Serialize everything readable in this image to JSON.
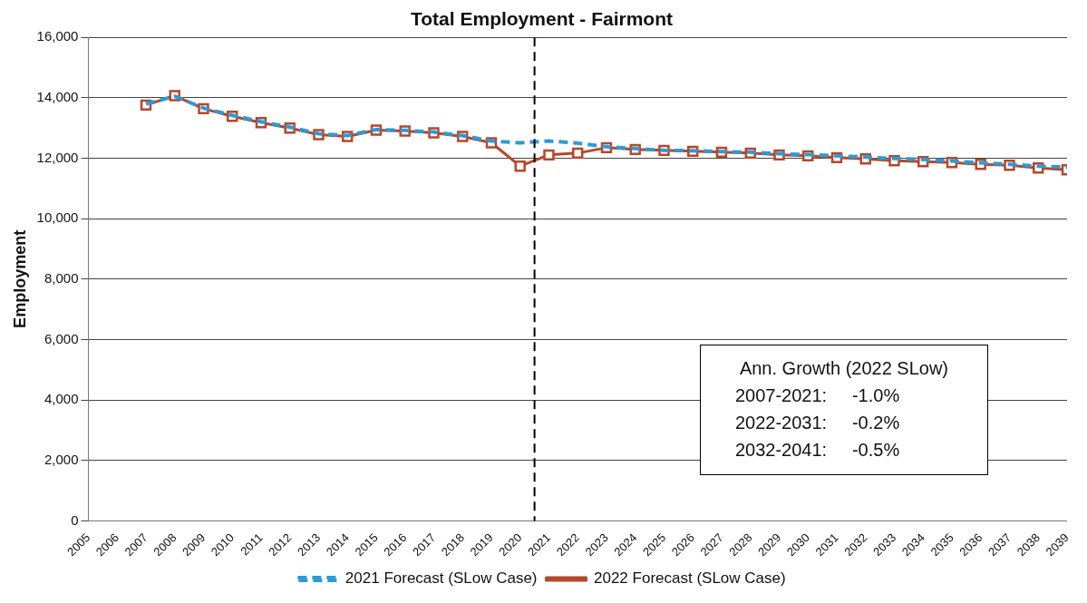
{
  "chart_data": {
    "type": "line",
    "title": "Total Employment - Fairmont",
    "ylabel": "Employment",
    "x": [
      2007,
      2008,
      2009,
      2010,
      2011,
      2012,
      2013,
      2014,
      2015,
      2016,
      2017,
      2018,
      2019,
      2020,
      2021,
      2022,
      2023,
      2024,
      2025,
      2026,
      2027,
      2028,
      2029,
      2030,
      2031,
      2032,
      2033,
      2034,
      2035,
      2036,
      2037,
      2038,
      2039
    ],
    "series": [
      {
        "name": "2022 Forecast (SLow Case)",
        "color": "#b5472a",
        "marker": "square",
        "line_style": "solid",
        "values": [
          13760,
          14070,
          13640,
          13390,
          13180,
          13000,
          12780,
          12720,
          12930,
          12900,
          12840,
          12720,
          12510,
          11740,
          12110,
          12170,
          12350,
          12290,
          12260,
          12230,
          12200,
          12170,
          12110,
          12080,
          12020,
          11980,
          11920,
          11890,
          11860,
          11800,
          11770,
          11680,
          11620
        ]
      },
      {
        "name": "2021 Forecast (SLow Case)",
        "color": "#2e9ad6",
        "marker": "none",
        "line_style": "dashed",
        "values": [
          13800,
          14050,
          13660,
          13420,
          13210,
          13030,
          12810,
          12750,
          12950,
          12920,
          12870,
          12750,
          12570,
          12510,
          12570,
          12500,
          12380,
          12320,
          12260,
          12250,
          12220,
          12200,
          12150,
          12120,
          12080,
          12040,
          11990,
          11960,
          11910,
          11850,
          11800,
          11740,
          11710
        ]
      }
    ],
    "xlim": [
      2005,
      2039
    ],
    "xticks": [
      2005,
      2006,
      2007,
      2008,
      2009,
      2010,
      2011,
      2012,
      2013,
      2014,
      2015,
      2016,
      2017,
      2018,
      2019,
      2020,
      2021,
      2022,
      2023,
      2024,
      2025,
      2026,
      2027,
      2028,
      2029,
      2030,
      2031,
      2032,
      2033,
      2034,
      2035,
      2036,
      2037,
      2038,
      2039
    ],
    "ylim": [
      0,
      16000
    ],
    "yticks": [
      0,
      {
        "value": 2000,
        "label": "2,000"
      },
      {
        "value": 4000,
        "label": "4,000"
      },
      {
        "value": 6000,
        "label": "6,000"
      },
      {
        "value": 8000,
        "label": "8,000"
      },
      {
        "value": 10000,
        "label": "10,000"
      },
      {
        "value": 12000,
        "label": "12,000"
      },
      {
        "value": 14000,
        "label": "14,000"
      },
      {
        "value": 16000,
        "label": "16,000"
      }
    ],
    "ref_lines": [
      {
        "axis": "x",
        "value": 2020.5,
        "color": "#000000",
        "line_style": "dashed"
      }
    ],
    "annotations": [
      "Ann. Growth (2022 SLow)",
      "2007-2021:     -1.0%",
      "2022-2031:     -0.2%",
      "2032-2041:     -0.5%"
    ],
    "grid": "y",
    "legend": "bottom"
  }
}
